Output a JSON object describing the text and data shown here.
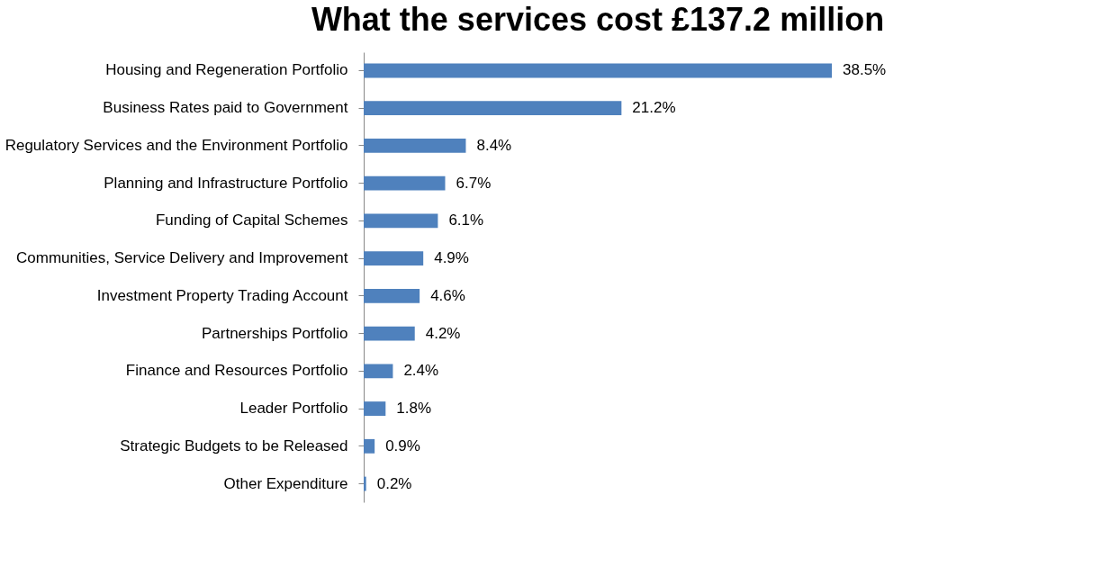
{
  "chart_data": {
    "type": "bar",
    "orientation": "horizontal",
    "title": "What the services cost £137.2 million",
    "categories": [
      "Housing and Regeneration Portfolio",
      "Business Rates paid to Government",
      "Regulatory Services and the Environment Portfolio",
      "Planning and Infrastructure Portfolio",
      "Funding of Capital Schemes",
      "Communities, Service Delivery and Improvement",
      "Investment Property Trading Account",
      "Partnerships Portfolio",
      "Finance and Resources Portfolio",
      "Leader Portfolio",
      "Strategic Budgets to be Released",
      "Other Expenditure"
    ],
    "values": [
      38.5,
      21.2,
      8.4,
      6.7,
      6.1,
      4.9,
      4.6,
      4.2,
      2.4,
      1.8,
      0.9,
      0.2
    ],
    "value_labels": [
      "38.5%",
      "21.2%",
      "8.4%",
      "6.7%",
      "6.1%",
      "4.9%",
      "4.6%",
      "4.2%",
      "2.4%",
      "1.8%",
      "0.9%",
      "0.2%"
    ],
    "color": "#4f81bd",
    "grid": false
  }
}
